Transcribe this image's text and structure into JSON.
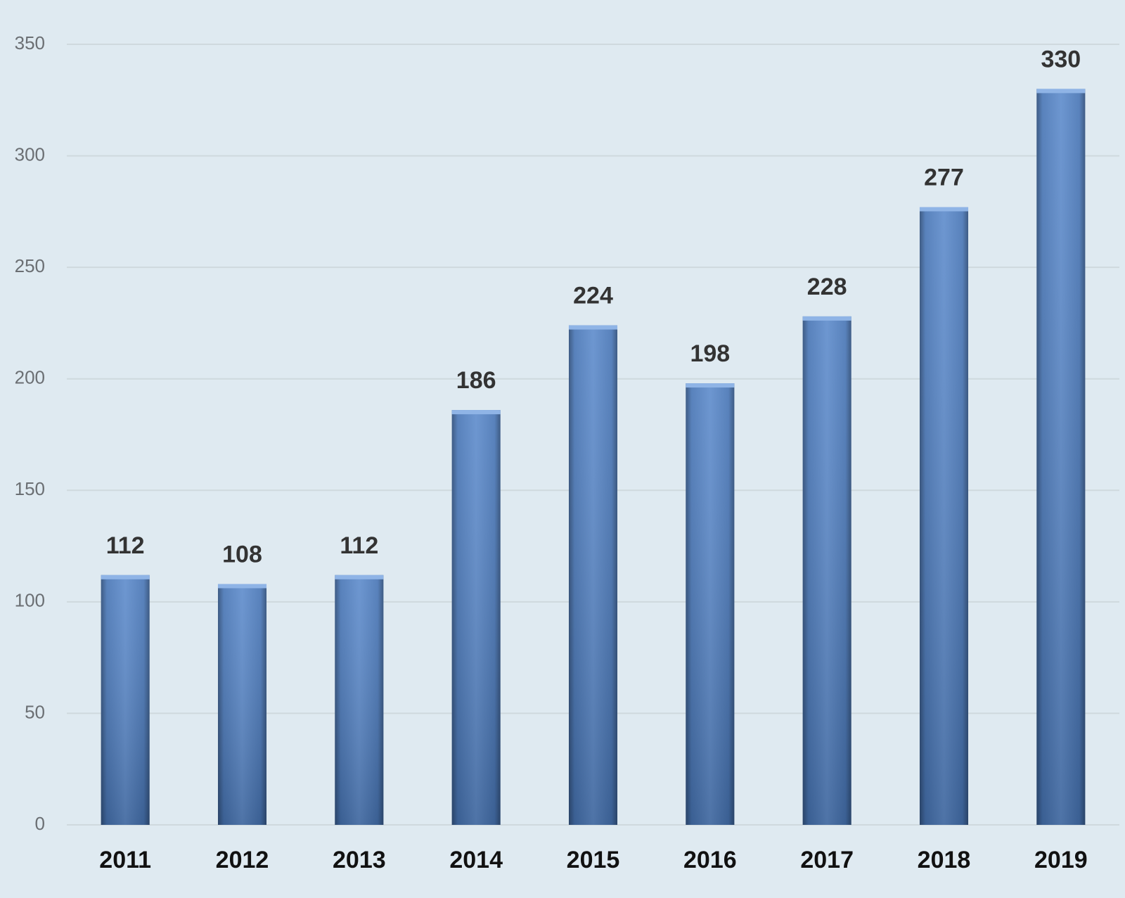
{
  "chart_data": {
    "type": "bar",
    "categories": [
      "2011",
      "2012",
      "2013",
      "2014",
      "2015",
      "2016",
      "2017",
      "2018",
      "2019"
    ],
    "values": [
      112,
      108,
      112,
      186,
      224,
      198,
      228,
      277,
      330
    ],
    "color": "#4f81c7",
    "ylim": [
      0,
      350
    ],
    "yticks": [
      0,
      50,
      100,
      150,
      200,
      250,
      300,
      350
    ],
    "grid": true
  }
}
